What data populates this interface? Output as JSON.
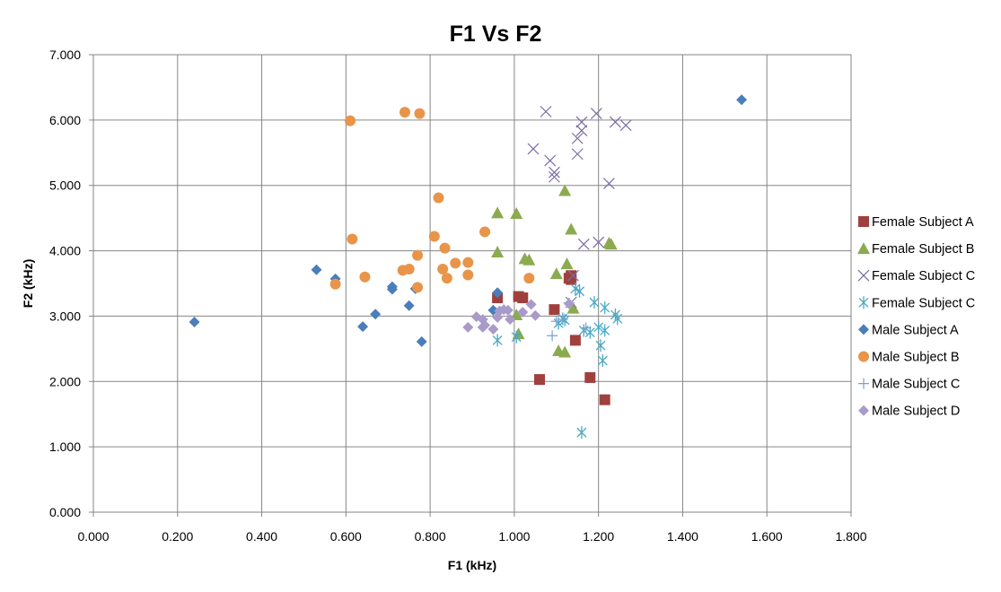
{
  "chart_data": {
    "type": "scatter",
    "title": "F1 Vs F2",
    "xlabel": "F1 (kHz)",
    "ylabel": "F2 (kHz)",
    "xlim": [
      0,
      1.8
    ],
    "ylim": [
      0,
      7
    ],
    "x_ticks": [
      "0.000",
      "0.200",
      "0.400",
      "0.600",
      "0.800",
      "1.000",
      "1.200",
      "1.400",
      "1.600",
      "1.800"
    ],
    "y_ticks": [
      "0.000",
      "1.000",
      "2.000",
      "3.000",
      "4.000",
      "5.000",
      "6.000",
      "7.000"
    ],
    "grid": true,
    "legend_position": "right",
    "series": [
      {
        "name": "Female Subject A",
        "marker": "square",
        "color": "#A0403E",
        "points": [
          [
            0.96,
            3.28
          ],
          [
            1.01,
            3.3
          ],
          [
            1.02,
            3.28
          ],
          [
            1.095,
            3.1
          ],
          [
            1.13,
            3.58
          ],
          [
            1.135,
            3.62
          ],
          [
            1.135,
            3.56
          ],
          [
            1.145,
            2.63
          ],
          [
            1.06,
            2.03
          ],
          [
            1.18,
            2.06
          ],
          [
            1.215,
            1.72
          ]
        ]
      },
      {
        "name": "Female Subject B",
        "marker": "triangle",
        "color": "#8CAA50",
        "points": [
          [
            0.96,
            4.58
          ],
          [
            1.005,
            4.57
          ],
          [
            0.96,
            3.98
          ],
          [
            1.12,
            4.92
          ],
          [
            1.135,
            4.33
          ],
          [
            1.225,
            4.12
          ],
          [
            1.23,
            4.1
          ],
          [
            1.025,
            3.88
          ],
          [
            1.035,
            3.86
          ],
          [
            1.125,
            3.8
          ],
          [
            1.1,
            3.65
          ],
          [
            1.005,
            3.02
          ],
          [
            1.01,
            2.73
          ],
          [
            1.105,
            2.47
          ],
          [
            1.12,
            2.45
          ],
          [
            1.14,
            3.12
          ]
        ]
      },
      {
        "name": "Female Subject C",
        "marker": "x",
        "color": "#7C6CA3",
        "points": [
          [
            1.075,
            6.13
          ],
          [
            1.195,
            6.1
          ],
          [
            1.16,
            5.97
          ],
          [
            1.24,
            5.97
          ],
          [
            1.265,
            5.92
          ],
          [
            1.16,
            5.84
          ],
          [
            1.15,
            5.72
          ],
          [
            1.045,
            5.56
          ],
          [
            1.085,
            5.38
          ],
          [
            1.095,
            5.2
          ],
          [
            1.095,
            5.13
          ],
          [
            1.15,
            5.48
          ],
          [
            1.225,
            5.03
          ],
          [
            1.165,
            4.1
          ],
          [
            1.2,
            4.13
          ],
          [
            1.14,
            3.62
          ],
          [
            1.135,
            3.21
          ]
        ]
      },
      {
        "name": "Female Subject C",
        "marker": "asterisk",
        "color": "#4AA9C4",
        "points": [
          [
            1.145,
            3.42
          ],
          [
            1.155,
            3.38
          ],
          [
            1.19,
            3.21
          ],
          [
            1.215,
            3.13
          ],
          [
            1.24,
            3.02
          ],
          [
            1.245,
            2.96
          ],
          [
            1.12,
            2.94
          ],
          [
            1.115,
            2.96
          ],
          [
            1.105,
            2.89
          ],
          [
            1.165,
            2.78
          ],
          [
            1.2,
            2.83
          ],
          [
            1.215,
            2.78
          ],
          [
            1.18,
            2.75
          ],
          [
            1.205,
            2.55
          ],
          [
            1.21,
            2.32
          ],
          [
            1.16,
            1.22
          ],
          [
            0.96,
            2.63
          ],
          [
            1.005,
            2.68
          ]
        ]
      },
      {
        "name": "Male Subject A",
        "marker": "diamond",
        "color": "#4A7EBB",
        "points": [
          [
            0.24,
            2.91
          ],
          [
            0.53,
            3.71
          ],
          [
            0.575,
            3.57
          ],
          [
            0.71,
            3.45
          ],
          [
            0.71,
            3.41
          ],
          [
            0.765,
            3.42
          ],
          [
            0.67,
            3.03
          ],
          [
            0.75,
            3.16
          ],
          [
            0.64,
            2.84
          ],
          [
            0.78,
            2.61
          ],
          [
            0.96,
            3.36
          ],
          [
            0.95,
            3.09
          ],
          [
            1.54,
            6.31
          ]
        ]
      },
      {
        "name": "Male Subject B",
        "marker": "circle",
        "color": "#E8954A",
        "points": [
          [
            0.61,
            5.99
          ],
          [
            0.74,
            6.12
          ],
          [
            0.775,
            6.1
          ],
          [
            0.82,
            4.81
          ],
          [
            0.615,
            4.18
          ],
          [
            0.81,
            4.22
          ],
          [
            0.93,
            4.29
          ],
          [
            0.835,
            4.04
          ],
          [
            0.77,
            3.93
          ],
          [
            0.86,
            3.81
          ],
          [
            0.89,
            3.82
          ],
          [
            0.83,
            3.72
          ],
          [
            0.735,
            3.7
          ],
          [
            0.75,
            3.72
          ],
          [
            0.645,
            3.6
          ],
          [
            0.84,
            3.58
          ],
          [
            0.89,
            3.63
          ],
          [
            1.035,
            3.58
          ],
          [
            0.575,
            3.49
          ],
          [
            0.77,
            3.44
          ]
        ]
      },
      {
        "name": "Male Subject C",
        "marker": "plus",
        "color": "#77A1D2",
        "points": [
          [
            1.09,
            2.7
          ],
          [
            1.1,
            2.92
          ],
          [
            1.115,
            2.95
          ],
          [
            1.13,
            3.2
          ],
          [
            1.17,
            2.82
          ]
        ]
      },
      {
        "name": "Male Subject D",
        "marker": "diamond",
        "color": "#A99BC9",
        "points": [
          [
            0.91,
            2.99
          ],
          [
            0.925,
            2.95
          ],
          [
            0.965,
            3.08
          ],
          [
            0.975,
            3.1
          ],
          [
            0.985,
            3.09
          ],
          [
            1.04,
            3.18
          ],
          [
            1.02,
            3.06
          ],
          [
            1.05,
            3.01
          ],
          [
            0.96,
            2.98
          ],
          [
            0.99,
            2.95
          ],
          [
            0.93,
            2.86
          ],
          [
            0.89,
            2.83
          ],
          [
            0.925,
            2.83
          ],
          [
            0.95,
            2.8
          ],
          [
            1.13,
            3.19
          ]
        ]
      }
    ]
  }
}
